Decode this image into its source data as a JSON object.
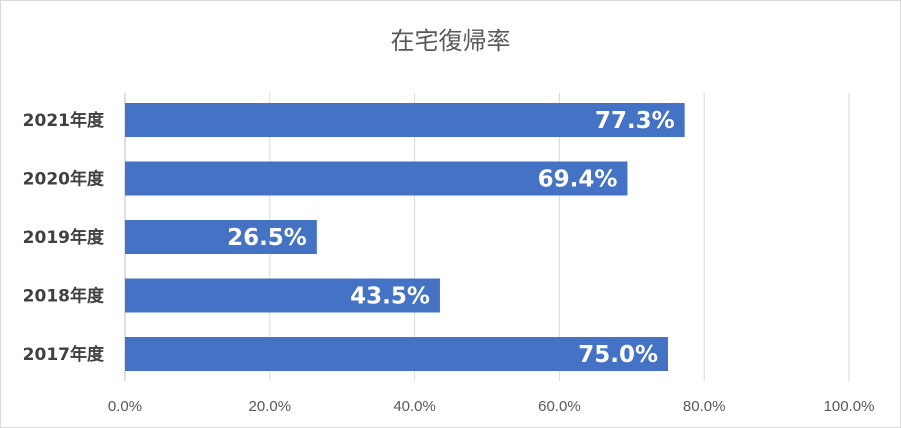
{
  "chart_data": {
    "type": "bar",
    "orientation": "horizontal",
    "title": "在宅復帰率",
    "categories": [
      "2021年度",
      "2020年度",
      "2019年度",
      "2018年度",
      "2017年度"
    ],
    "values": [
      77.3,
      69.4,
      26.5,
      43.5,
      75.0
    ],
    "data_labels": [
      "77.3%",
      "69.4%",
      "26.5%",
      "43.5%",
      "75.0%"
    ],
    "xlim": [
      0,
      100
    ],
    "x_ticks": [
      0,
      20,
      40,
      60,
      80,
      100
    ],
    "x_tick_labels": [
      "0.0%",
      "20.0%",
      "40.0%",
      "60.0%",
      "80.0%",
      "100.0%"
    ],
    "grid": true,
    "legend": "none",
    "bar_color": "#4472c4"
  }
}
